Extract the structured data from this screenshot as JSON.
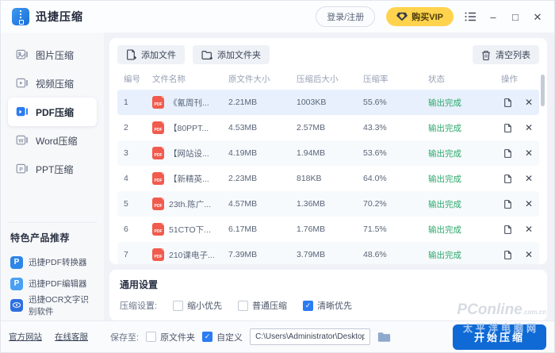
{
  "app": {
    "title": "迅捷压缩"
  },
  "header": {
    "login_label": "登录/注册",
    "vip_label": "购买VIP",
    "minimize": "–",
    "maximize": "□",
    "close": "✕"
  },
  "sidebar": {
    "items": [
      {
        "label": "图片压缩",
        "active": false
      },
      {
        "label": "视频压缩",
        "active": false
      },
      {
        "label": "PDF压缩",
        "active": true
      },
      {
        "label": "Word压缩",
        "active": false
      },
      {
        "label": "PPT压缩",
        "active": false
      }
    ],
    "recommend_title": "特色产品推荐",
    "products": [
      {
        "label": "迅捷PDF转换器"
      },
      {
        "label": "迅捷PDF编辑器"
      },
      {
        "label": "迅捷OCR文字识别软件"
      }
    ]
  },
  "toolbar": {
    "add_file": "添加文件",
    "add_folder": "添加文件夹",
    "clear_list": "清空列表"
  },
  "table": {
    "headers": [
      "编号",
      "文件名称",
      "原文件大小",
      "压缩后大小",
      "压缩率",
      "状态",
      "操作"
    ],
    "rows": [
      {
        "no": "1",
        "name": "《氪周刊...",
        "orig": "2.21MB",
        "compressed": "1003KB",
        "ratio": "55.6%",
        "status": "输出完成"
      },
      {
        "no": "2",
        "name": "【80PPT...",
        "orig": "4.53MB",
        "compressed": "2.57MB",
        "ratio": "43.3%",
        "status": "输出完成"
      },
      {
        "no": "3",
        "name": "【网站设...",
        "orig": "4.19MB",
        "compressed": "1.94MB",
        "ratio": "53.6%",
        "status": "输出完成"
      },
      {
        "no": "4",
        "name": "【新精英...",
        "orig": "2.23MB",
        "compressed": "818KB",
        "ratio": "64.0%",
        "status": "输出完成"
      },
      {
        "no": "5",
        "name": "23th.陈广...",
        "orig": "4.57MB",
        "compressed": "1.36MB",
        "ratio": "70.2%",
        "status": "输出完成"
      },
      {
        "no": "6",
        "name": "51CTO下...",
        "orig": "6.17MB",
        "compressed": "1.76MB",
        "ratio": "71.5%",
        "status": "输出完成"
      },
      {
        "no": "7",
        "name": "210课电子...",
        "orig": "7.39MB",
        "compressed": "3.79MB",
        "ratio": "48.6%",
        "status": "输出完成"
      }
    ]
  },
  "settings": {
    "title": "通用设置",
    "label": "压缩设置:",
    "options": [
      {
        "label": "缩小优先",
        "checked": false
      },
      {
        "label": "普通压缩",
        "checked": false
      },
      {
        "label": "清晰优先",
        "checked": true
      }
    ]
  },
  "footer": {
    "links": [
      "官方网站",
      "在线客服"
    ],
    "save_label": "保存至:",
    "save_options": [
      {
        "label": "原文件夹",
        "checked": false
      },
      {
        "label": "自定义",
        "checked": true
      }
    ],
    "path": "C:\\Users\\Administrator\\Desktop",
    "start_label": "开始压缩"
  },
  "watermark": {
    "logo": "PConline",
    "logo_suffix": ".com.cn",
    "site": "太平洋电脑网"
  },
  "colors": {
    "accent": "#2b7bf3",
    "status_green": "#2ba76a",
    "pdf_red": "#f15b4d",
    "vip_yellow": "#ffd34d",
    "start_blue": "#0f6ad5"
  }
}
